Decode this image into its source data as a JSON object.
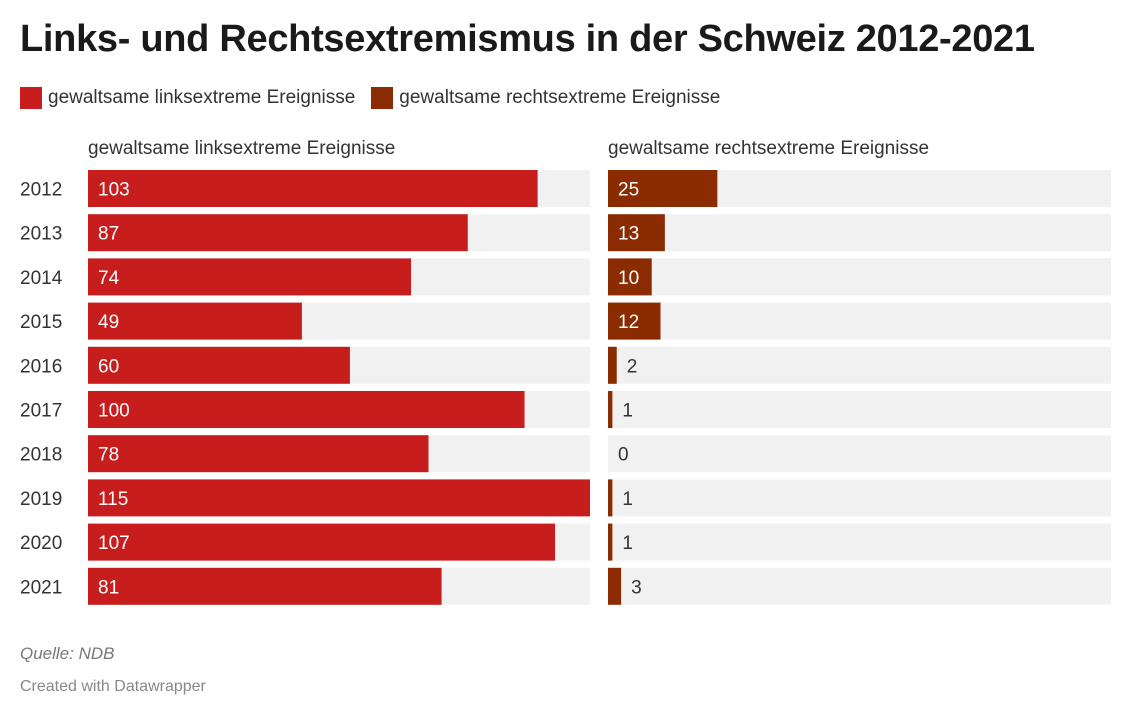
{
  "title": "Links- und Rechtsextremismus in der Schweiz 2012-2021",
  "legend": [
    {
      "label": "gewaltsame linksextreme Ereignisse",
      "color": "#c71e1d"
    },
    {
      "label": "gewaltsame rechtsextreme Ereignisse",
      "color": "#8a2c00"
    }
  ],
  "source": "Quelle: NDB",
  "credit": "Created with Datawrapper",
  "chart_data": {
    "type": "bar",
    "orientation": "horizontal",
    "layout": "small-multiples",
    "categories": [
      "2012",
      "2013",
      "2014",
      "2015",
      "2016",
      "2017",
      "2018",
      "2019",
      "2020",
      "2021"
    ],
    "xlim": [
      0,
      115
    ],
    "background_bar_color": "#f1f1f1",
    "series": [
      {
        "name": "gewaltsame linksextreme Ereignisse",
        "color": "#c71e1d",
        "values": [
          103,
          87,
          74,
          49,
          60,
          100,
          78,
          115,
          107,
          81
        ]
      },
      {
        "name": "gewaltsame rechtsextreme Ereignisse",
        "color": "#8a2c00",
        "values": [
          25,
          13,
          10,
          12,
          2,
          1,
          0,
          1,
          1,
          3
        ]
      }
    ]
  }
}
